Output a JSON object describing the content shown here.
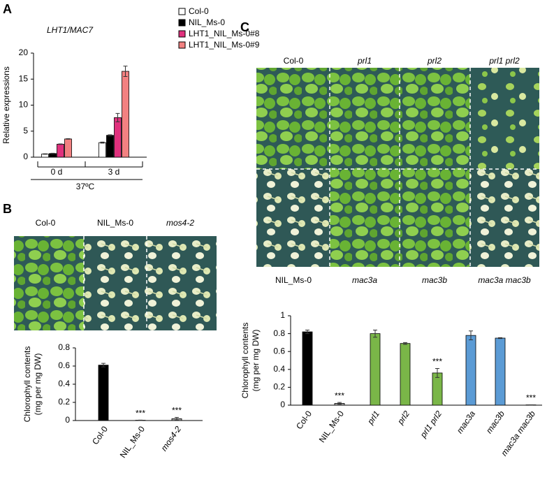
{
  "panel_labels": [
    "A",
    "B",
    "C"
  ],
  "chart_data": [
    {
      "type": "bar",
      "title": "LHT1/MAC7",
      "y_label": "Relative expressions",
      "categories": [
        "0 d",
        "3 d"
      ],
      "group_label": "37ºC",
      "series": [
        {
          "name": "Col-0",
          "color": "#ffffff",
          "values": [
            0.6,
            2.8
          ],
          "errors": [
            0.05,
            0.1
          ]
        },
        {
          "name": "NIL_Ms-0",
          "color": "#000000",
          "values": [
            0.7,
            4.2
          ],
          "errors": [
            0.05,
            0.1
          ]
        },
        {
          "name": "LHT1_NIL_Ms-0#8",
          "color": "#e0317d",
          "values": [
            2.5,
            7.6
          ],
          "errors": [
            0.05,
            0.8
          ]
        },
        {
          "name": "LHT1_NIL_Ms-0#9",
          "color": "#f28181",
          "values": [
            3.5,
            16.5
          ],
          "errors": [
            0.05,
            1.0
          ]
        }
      ],
      "ylim": [
        0,
        20
      ],
      "yticks": [
        0,
        5,
        10,
        15,
        20
      ]
    },
    {
      "type": "bar",
      "y_label": [
        "Chlorophyll contents",
        "(mg per mg DW)"
      ],
      "categories": [
        "Col-0",
        "NIL_Ms-0",
        "mos4-2"
      ],
      "values": [
        0.61,
        0.003,
        0.02
      ],
      "errors": [
        0.02,
        0.002,
        0.015
      ],
      "colors": [
        "#000000",
        "#a6a6a6",
        "#a6a6a6"
      ],
      "significance": [
        null,
        "***",
        "***"
      ],
      "ylim": [
        0,
        0.8
      ],
      "yticks": [
        0,
        0.2,
        0.4,
        0.6,
        0.8
      ]
    },
    {
      "type": "bar",
      "y_label": [
        "Chlorophyll contents",
        "(mg per mg DW)"
      ],
      "categories": [
        "Col-0",
        "NIL_Ms-0",
        "prl1",
        "prl2",
        "prl1 prl2",
        "mac3a",
        "mac3b",
        "mac3a mac3b"
      ],
      "values": [
        0.82,
        0.02,
        0.8,
        0.69,
        0.36,
        0.78,
        0.75,
        0.003
      ],
      "errors": [
        0.02,
        0.01,
        0.04,
        0.01,
        0.05,
        0.05,
        0.005,
        0.001
      ],
      "colors": [
        "#000000",
        "#a6a6a6",
        "#7ab648",
        "#7ab648",
        "#7ab648",
        "#5b9bd5",
        "#5b9bd5",
        "#5b9bd5"
      ],
      "significance": [
        null,
        "***",
        null,
        null,
        "***",
        null,
        null,
        "***"
      ],
      "ylim": [
        0,
        1
      ],
      "yticks": [
        0,
        0.2,
        0.4,
        0.6,
        0.8,
        1
      ]
    }
  ],
  "photos": [
    {
      "top_labels": [
        "Col-0",
        "NIL_Ms-0",
        "mos4-2"
      ]
    },
    {
      "top_labels": [
        "Col-0",
        "prl1",
        "prl2",
        "prl1 prl2"
      ],
      "bottom_labels": [
        "NIL_Ms-0",
        "mac3a",
        "mac3b",
        "mac3a mac3b"
      ]
    }
  ]
}
